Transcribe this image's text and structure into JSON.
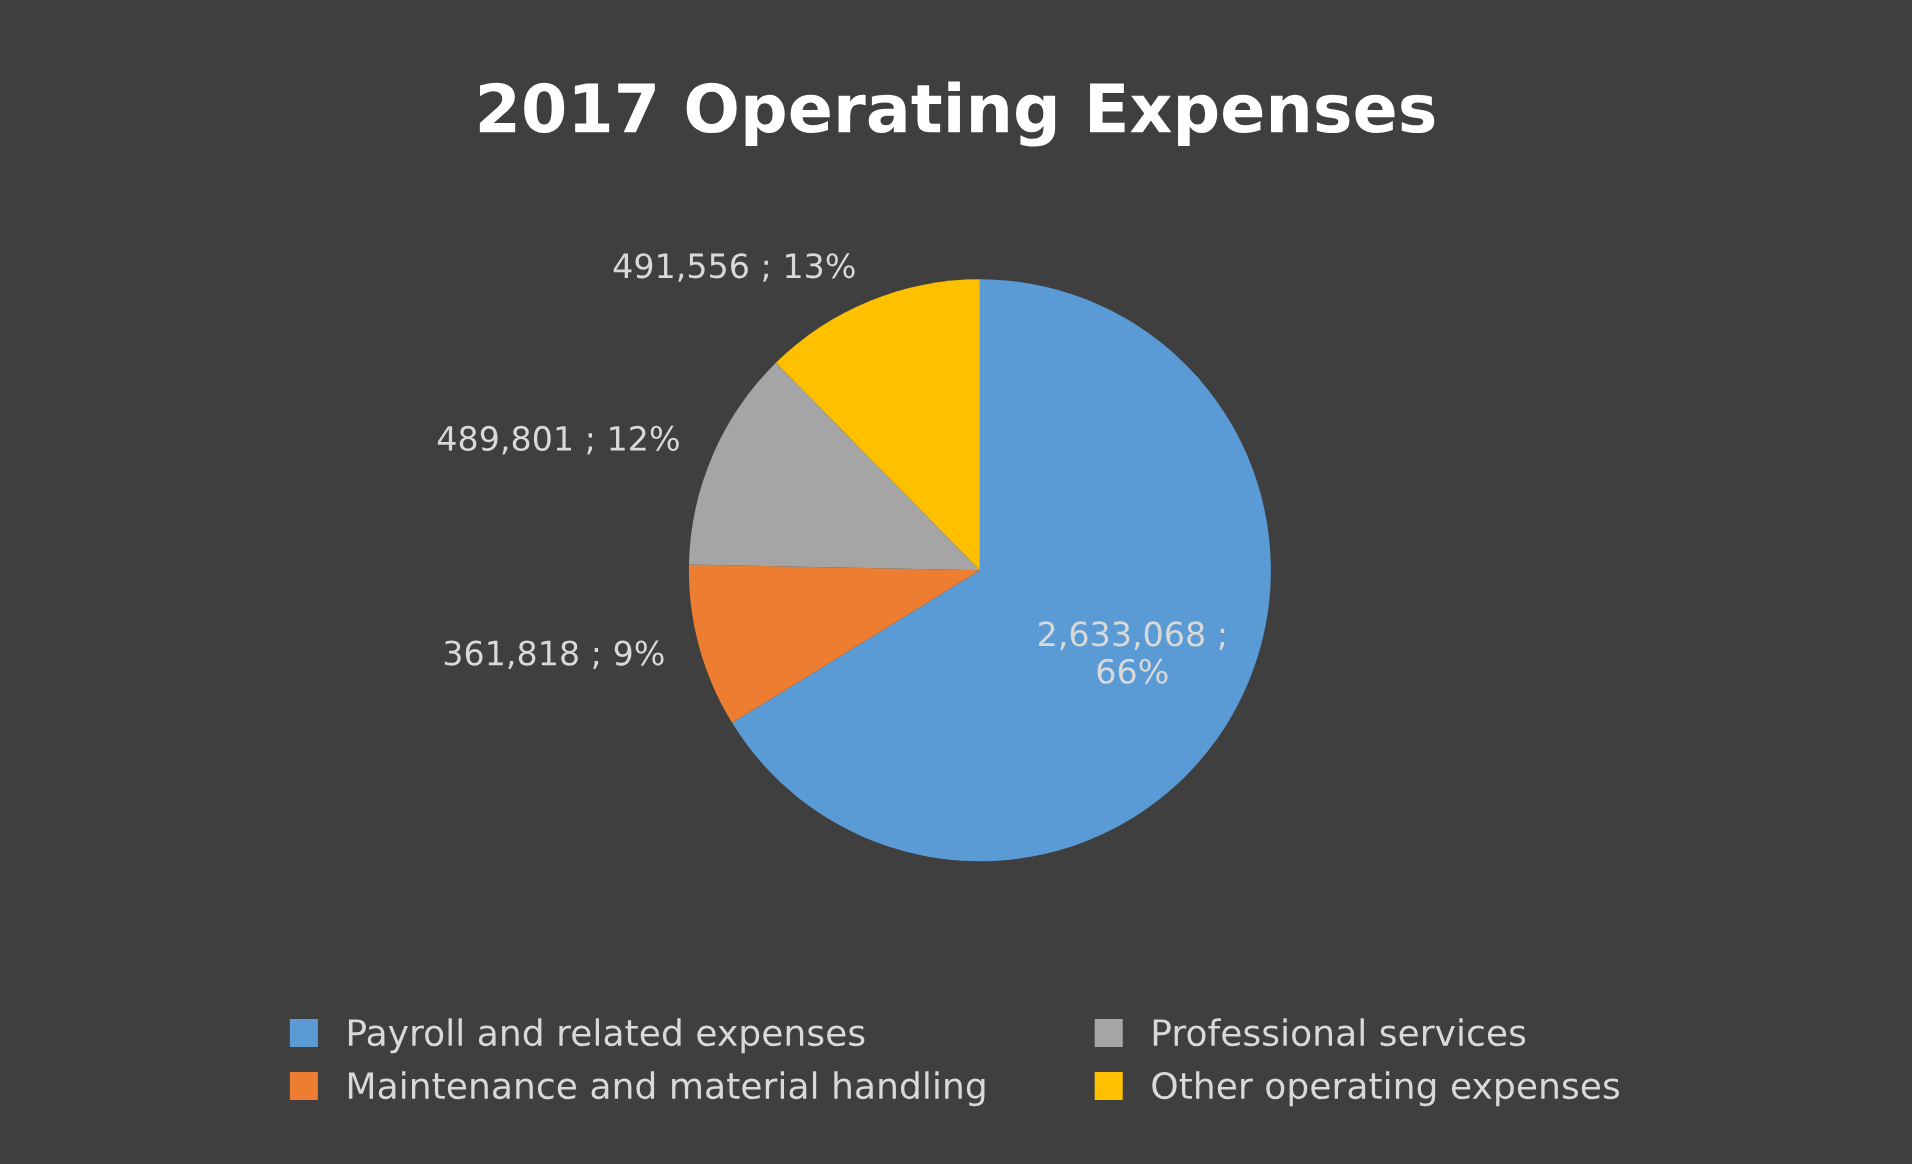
{
  "chart_data": {
    "type": "pie",
    "title": "2017 Operating Expenses",
    "categories": [
      "Payroll and related expenses",
      "Maintenance and material handling",
      "Professional services",
      "Other operating expenses"
    ],
    "values": [
      2633068,
      361818,
      489801,
      491556
    ],
    "colors": [
      "#5b9bd5",
      "#ed7d31",
      "#a5a5a5",
      "#ffc000"
    ],
    "value_labels": [
      "2,633,068 ;\n66%",
      "361,818 ; 9%",
      "489,801 ; 12%",
      "491,556 ; 13%"
    ],
    "legend": "bottom"
  }
}
